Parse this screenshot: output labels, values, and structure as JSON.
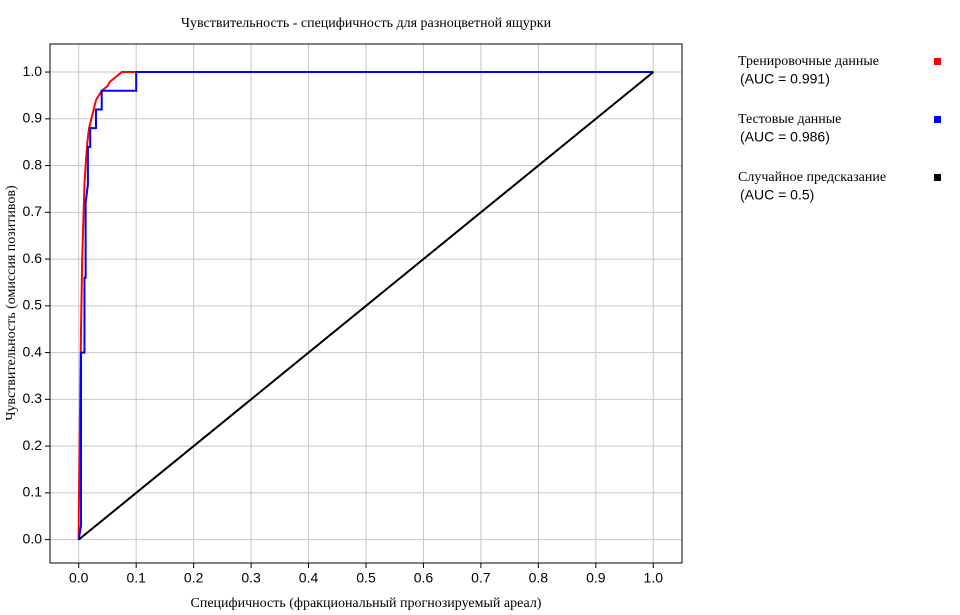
{
  "chart_data": {
    "type": "line",
    "title": "Чувствительность - специфичность для разноцветной ящурки",
    "x_label": "Специфичность (фракциональный прогнозируемый ареал)",
    "y_label": "Чувствительность (омиссия позитивов)",
    "xlim": [
      -0.05,
      1.05
    ],
    "ylim": [
      -0.05,
      1.06
    ],
    "xticks": [
      {
        "value": 0,
        "label": "0.0"
      },
      0.1,
      0.2,
      0.3,
      0.4,
      0.5,
      0.6,
      0.7,
      0.8,
      0.9,
      {
        "value": 1,
        "label": "1.0"
      }
    ],
    "yticks": [
      {
        "value": 0,
        "label": "0.0"
      },
      0.1,
      0.2,
      0.3,
      0.4,
      0.5,
      0.6,
      0.7,
      0.8,
      0.9,
      {
        "value": 1,
        "label": "1.0"
      }
    ],
    "grid": true,
    "legend": "right",
    "series": [
      {
        "name": "Тренировочные данные",
        "note": "(AUC = 0.991)",
        "color": "#ff0000",
        "x": [
          0,
          0,
          0.002,
          0.004,
          0.006,
          0.008,
          0.01,
          0.012,
          0.015,
          0.018,
          0.022,
          0.026,
          0.03,
          0.035,
          0.04,
          0.05,
          0.055,
          0.065,
          0.075,
          1
        ],
        "values": [
          0,
          0.05,
          0.25,
          0.45,
          0.6,
          0.68,
          0.76,
          0.8,
          0.85,
          0.88,
          0.9,
          0.92,
          0.94,
          0.95,
          0.96,
          0.97,
          0.98,
          0.99,
          1,
          1
        ]
      },
      {
        "name": "Тестовые данные",
        "note": "(AUC = 0.986)",
        "color": "#0000ff",
        "x": [
          0,
          0.004,
          0.004,
          0.01,
          0.01,
          0.012,
          0.012,
          0.016,
          0.016,
          0.02,
          0.02,
          0.03,
          0.03,
          0.04,
          0.04,
          0.1,
          0.1,
          1
        ],
        "values": [
          0,
          0.03,
          0.4,
          0.4,
          0.56,
          0.56,
          0.72,
          0.76,
          0.84,
          0.84,
          0.88,
          0.88,
          0.92,
          0.92,
          0.96,
          0.96,
          1,
          1
        ]
      },
      {
        "name": "Случайное предсказание",
        "note": "(AUC = 0.5)",
        "color": "#000000",
        "x": [
          0,
          1
        ],
        "values": [
          0,
          1
        ]
      }
    ]
  }
}
